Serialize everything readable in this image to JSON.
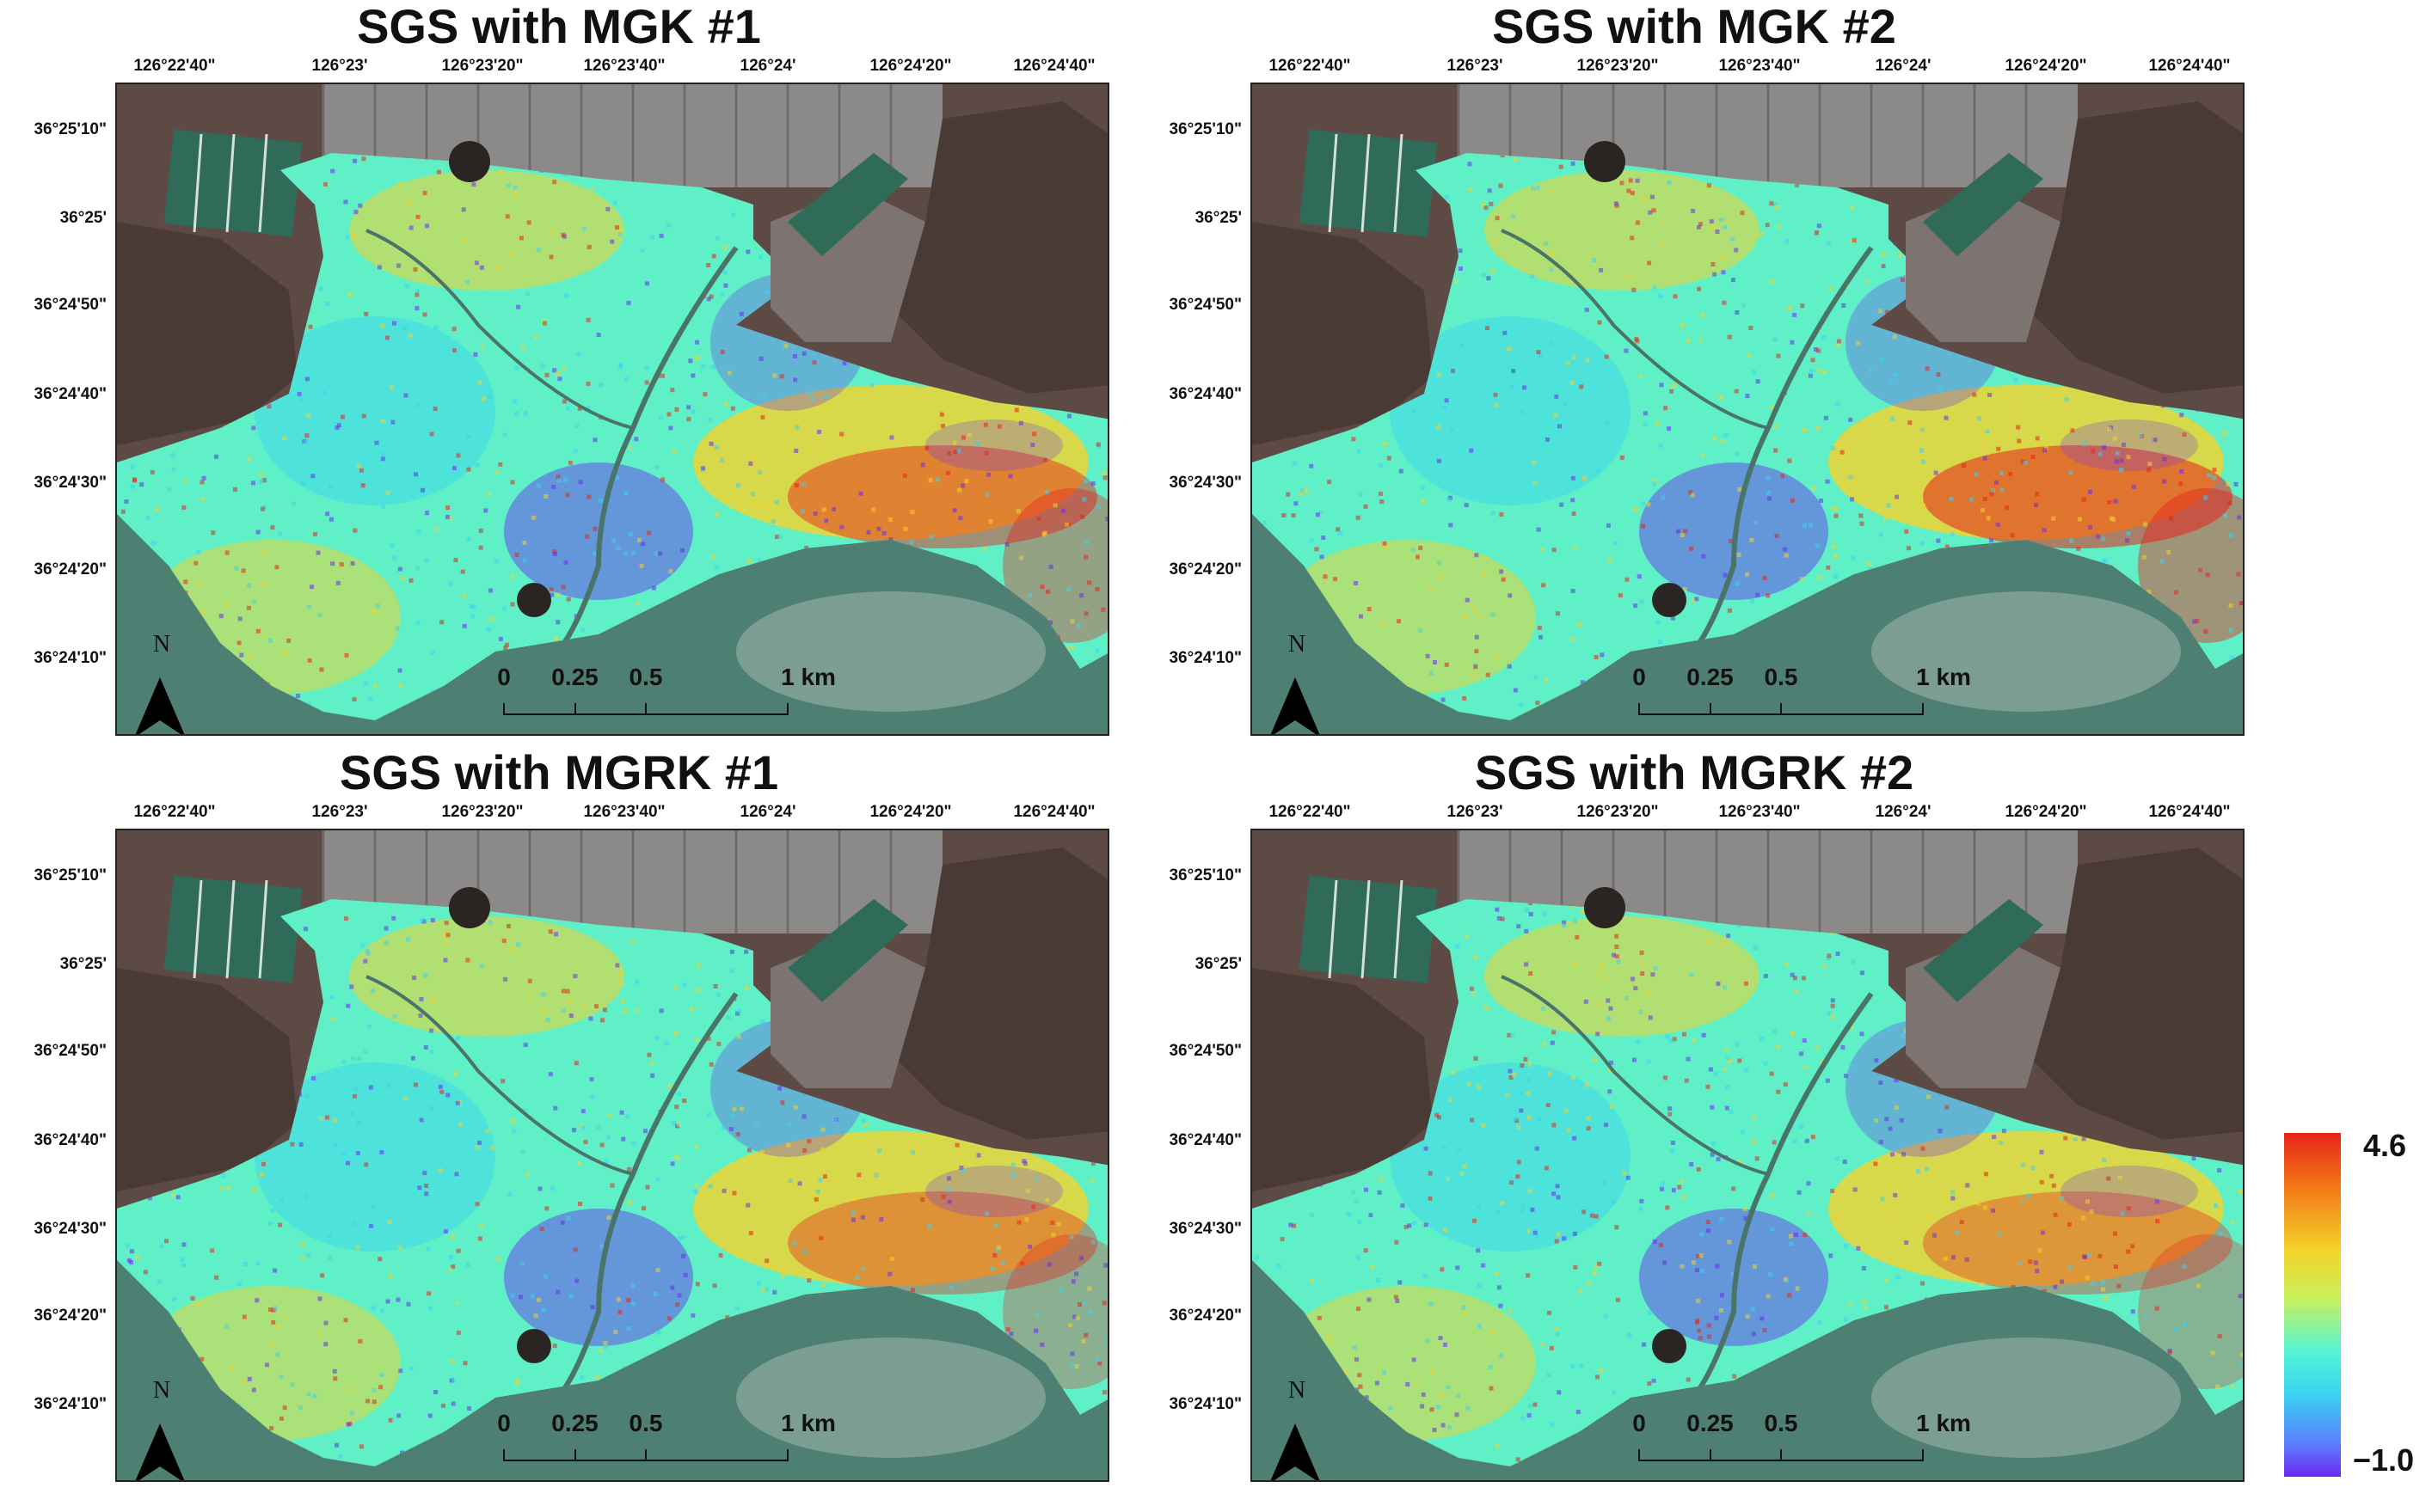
{
  "longitude_labels": [
    "126°22'40\"",
    "126°23'",
    "126°23'20\"",
    "126°23'40\"",
    "126°24'",
    "126°24'20\"",
    "126°24'40\""
  ],
  "latitude_labels": [
    "36°25'10\"",
    "36°25'",
    "36°24'50\"",
    "36°24'40\"",
    "36°24'30\"",
    "36°24'20\"",
    "36°24'10\""
  ],
  "north_label": "N",
  "scale_labels": [
    "0",
    "0.25",
    "0.5",
    "1 km"
  ],
  "scale_values_km": [
    0,
    0.25,
    0.5,
    1
  ],
  "panels": [
    {
      "title": "SGS with MGK #1",
      "hotspot_strength": 0.85
    },
    {
      "title": "SGS with MGK #2",
      "hotspot_strength": 1.0
    },
    {
      "title": "SGS with MGRK #1",
      "hotspot_strength": 0.7
    },
    {
      "title": "SGS with MGRK #2",
      "hotspot_strength": 0.65
    }
  ],
  "legend": {
    "max_label": "4.6",
    "min_label": "−1.0",
    "max": 4.6,
    "min": -1.0
  },
  "colors": {
    "low": "#6a2af0",
    "mid_low": "#3ad3f0",
    "mid": "#5ff0c8",
    "mid_high": "#f5d22a",
    "high": "#e8231a",
    "water": "#4e7f73",
    "sand": "#e9ecea",
    "land": "#5d4a44",
    "fields": "#8c8a88",
    "ponds": "#2f6b58"
  }
}
